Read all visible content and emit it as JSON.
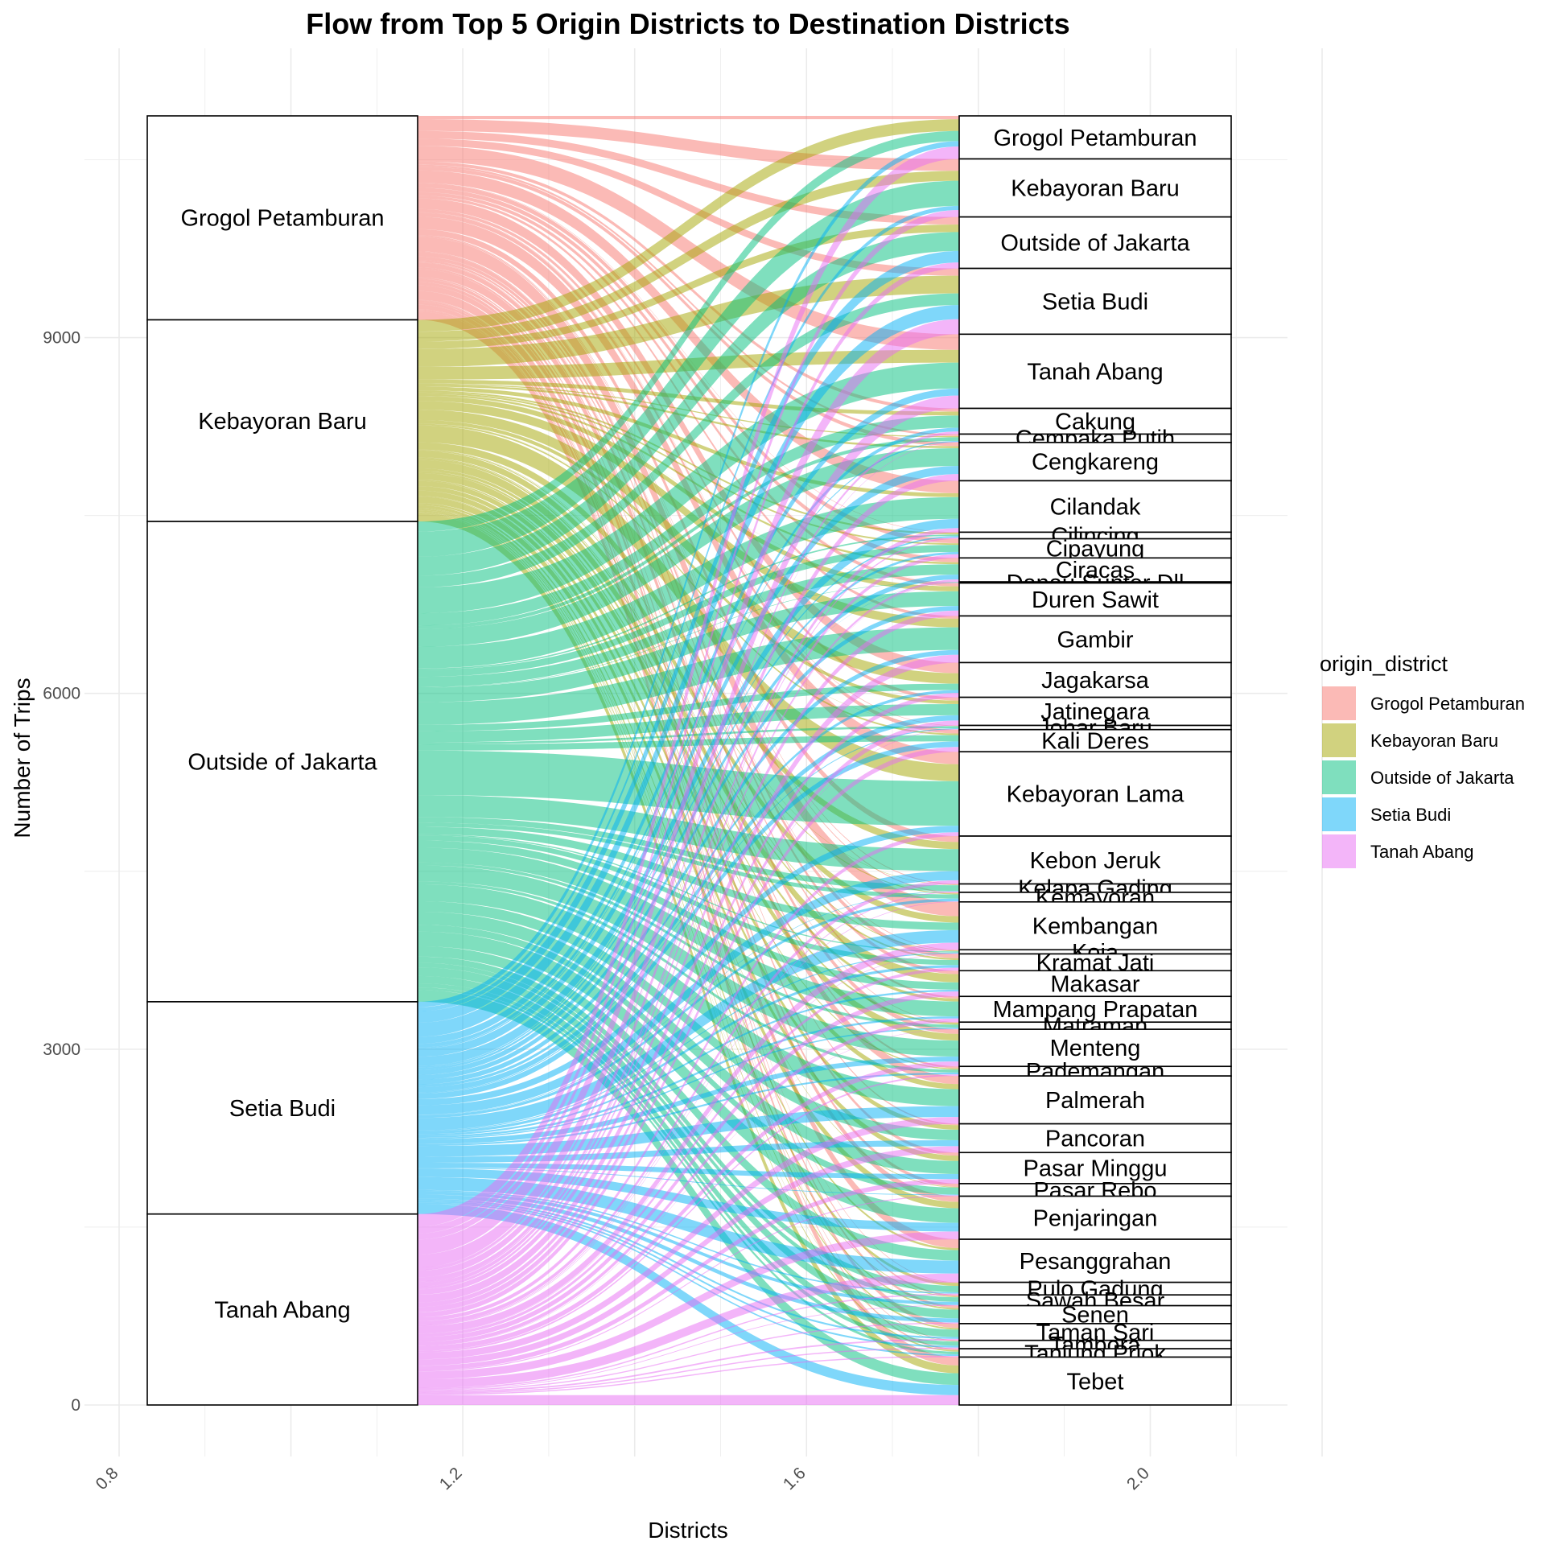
{
  "chart_data": {
    "type": "alluvial",
    "title": "Flow from Top 5 Origin Districts to Destination Districts",
    "xlabel": "Districts",
    "ylabel": "Number of Trips",
    "xlim": [
      0.8,
      2.2
    ],
    "ylim": [
      0,
      10900
    ],
    "x_ticks": [
      "0.8",
      "1.2",
      "1.6",
      "2.0"
    ],
    "x_tick_values": [
      0.8,
      1.2,
      1.6,
      2.0
    ],
    "y_ticks": [
      "0",
      "3000",
      "6000",
      "9000"
    ],
    "y_tick_values": [
      0,
      3000,
      6000,
      9000
    ],
    "grid": true,
    "legend": {
      "title": "origin_district",
      "position": "right",
      "entries": [
        {
          "name": "Grogol Petamburan",
          "color": "#F8766D"
        },
        {
          "name": "Kebayoran Baru",
          "color": "#A3A500"
        },
        {
          "name": "Outside of Jakarta",
          "color": "#00BF7D"
        },
        {
          "name": "Setia Budi",
          "color": "#00B0F6"
        },
        {
          "name": "Tanah Abang",
          "color": "#E76BF3"
        }
      ]
    },
    "origins": [
      {
        "name": "Grogol Petamburan",
        "value": 1720
      },
      {
        "name": "Kebayoran Baru",
        "value": 1700
      },
      {
        "name": "Outside of Jakarta",
        "value": 4050
      },
      {
        "name": "Setia Budi",
        "value": 1790
      },
      {
        "name": "Tanah Abang",
        "value": 1610
      }
    ],
    "destinations": [
      {
        "name": "Grogol Petamburan",
        "value": 360
      },
      {
        "name": "Kebayoran Baru",
        "value": 485
      },
      {
        "name": "Outside of Jakarta",
        "value": 430
      },
      {
        "name": "Setia Budi",
        "value": 550
      },
      {
        "name": "Tanah Abang",
        "value": 620
      },
      {
        "name": "Cakung",
        "value": 215
      },
      {
        "name": "Cempaka Putih",
        "value": 70
      },
      {
        "name": "Cengkareng",
        "value": 320
      },
      {
        "name": "Cilandak",
        "value": 430
      },
      {
        "name": "Cilincing",
        "value": 55
      },
      {
        "name": "Cipayung",
        "value": 160
      },
      {
        "name": "Ciracas",
        "value": 200
      },
      {
        "name": "Danau Sunter Dll",
        "value": 10
      },
      {
        "name": "Duren Sawit",
        "value": 275
      },
      {
        "name": "Gambir",
        "value": 390
      },
      {
        "name": "Jagakarsa",
        "value": 290
      },
      {
        "name": "Jatinegara",
        "value": 235
      },
      {
        "name": "Johar Baru",
        "value": 35
      },
      {
        "name": "Kali Deres",
        "value": 185
      },
      {
        "name": "Kebayoran Lama",
        "value": 705
      },
      {
        "name": "Kebon Jeruk",
        "value": 400
      },
      {
        "name": "Kelapa Gading",
        "value": 70
      },
      {
        "name": "Kemayoran",
        "value": 80
      },
      {
        "name": "Kembangan",
        "value": 400
      },
      {
        "name": "Koja",
        "value": 35
      },
      {
        "name": "Kramat Jati",
        "value": 140
      },
      {
        "name": "Makasar",
        "value": 215
      },
      {
        "name": "Mampang Prapatan",
        "value": 215
      },
      {
        "name": "Matraman",
        "value": 60
      },
      {
        "name": "Menteng",
        "value": 310
      },
      {
        "name": "Pademangan",
        "value": 80
      },
      {
        "name": "Palmerah",
        "value": 400
      },
      {
        "name": "Pancoran",
        "value": 240
      },
      {
        "name": "Pasar Minggu",
        "value": 260
      },
      {
        "name": "Pasar Rebo",
        "value": 105
      },
      {
        "name": "Penjaringan",
        "value": 360
      },
      {
        "name": "Pesanggrahan",
        "value": 360
      },
      {
        "name": "Pulo Gadung",
        "value": 105
      },
      {
        "name": "Sawah Besar",
        "value": 90
      },
      {
        "name": "Senen",
        "value": 150
      },
      {
        "name": "Taman Sari",
        "value": 140
      },
      {
        "name": "Tambora",
        "value": 70
      },
      {
        "name": "Tanjung Priok",
        "value": 70
      },
      {
        "name": "Tebet",
        "value": 400
      }
    ]
  }
}
